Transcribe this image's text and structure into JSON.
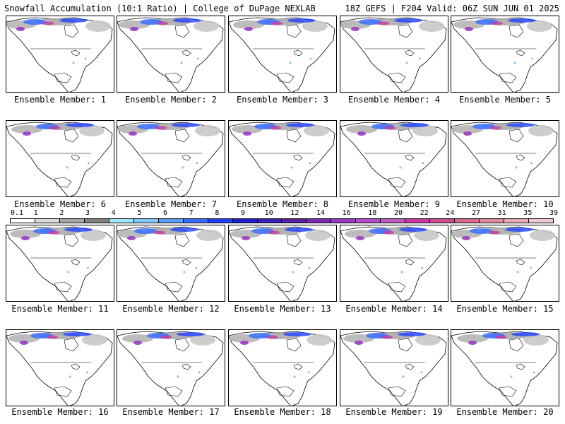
{
  "header": {
    "left_title": "Snowfall Accumulation (10:1 Ratio) | College of DuPage NEXLAB",
    "right_title": "18Z GEFS | F204 Valid: 06Z SUN JUN 01 2025"
  },
  "panels": [
    {
      "label": "Ensemble Member: 1"
    },
    {
      "label": "Ensemble Member: 2"
    },
    {
      "label": "Ensemble Member: 3"
    },
    {
      "label": "Ensemble Member: 4"
    },
    {
      "label": "Ensemble Member: 5"
    },
    {
      "label": "Ensemble Member: 6"
    },
    {
      "label": "Ensemble Member: 7"
    },
    {
      "label": "Ensemble Member: 8"
    },
    {
      "label": "Ensemble Member: 9"
    },
    {
      "label": "Ensemble Member: 10"
    },
    {
      "label": "Ensemble Member: 11"
    },
    {
      "label": "Ensemble Member: 12"
    },
    {
      "label": "Ensemble Member: 13"
    },
    {
      "label": "Ensemble Member: 14"
    },
    {
      "label": "Ensemble Member: 15"
    },
    {
      "label": "Ensemble Member: 16"
    },
    {
      "label": "Ensemble Member: 17"
    },
    {
      "label": "Ensemble Member: 18"
    },
    {
      "label": "Ensemble Member: 19"
    },
    {
      "label": "Ensemble Member: 20"
    }
  ],
  "colorbar": {
    "tick_labels": [
      "0.1",
      "1",
      "2",
      "3",
      "4",
      "5",
      "6",
      "7",
      "8",
      "9",
      "10",
      "12",
      "14",
      "16",
      "18",
      "20",
      "22",
      "24",
      "27",
      "31",
      "35",
      "39"
    ],
    "colors": [
      "#ffffff",
      "#d9d9d9",
      "#a6a6a6",
      "#808080",
      "#9ee7ff",
      "#7fc9ff",
      "#5aa0ff",
      "#3a6dff",
      "#2040ff",
      "#1f1fd0",
      "#3a1fb0",
      "#5a1fa0",
      "#7a2ab0",
      "#9a3ac0",
      "#b04ac8",
      "#c05ac0",
      "#c83aa0",
      "#d04a90",
      "#d86a90",
      "#e08aa0",
      "#e8a8b8",
      "#f0c8d0"
    ]
  }
}
